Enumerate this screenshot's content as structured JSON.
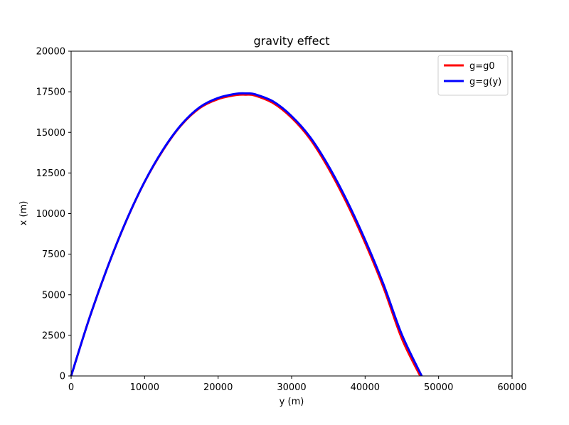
{
  "chart_data": {
    "type": "line",
    "title": "gravity effect",
    "xlabel": "y (m)",
    "ylabel": "x (m)",
    "xlim": [
      0,
      60000
    ],
    "ylim": [
      0,
      20000
    ],
    "xticks": [
      0,
      10000,
      20000,
      30000,
      40000,
      50000,
      60000
    ],
    "yticks": [
      0,
      2500,
      5000,
      7500,
      10000,
      12500,
      15000,
      17500,
      20000
    ],
    "grid": false,
    "legend_position": "upper-right",
    "series": [
      {
        "name": "g=g0",
        "color": "#ff0000",
        "x": [
          0,
          2500,
          5000,
          7500,
          10000,
          12500,
          15000,
          17500,
          20000,
          22500,
          23750,
          25000,
          27500,
          30000,
          32500,
          35000,
          37500,
          40000,
          42500,
          45000,
          47500
        ],
        "y": [
          0,
          3580,
          6750,
          9550,
          11950,
          13900,
          15450,
          16500,
          17050,
          17300,
          17320,
          17270,
          16800,
          15900,
          14600,
          12800,
          10650,
          8200,
          5450,
          2300,
          0
        ]
      },
      {
        "name": "g=g(y)",
        "color": "#0000ff",
        "x": [
          0,
          2500,
          5000,
          7500,
          10000,
          12500,
          15000,
          17500,
          20000,
          22500,
          23900,
          25000,
          27500,
          30000,
          32500,
          35000,
          37500,
          40000,
          42500,
          45000,
          47700
        ],
        "y": [
          0,
          3580,
          6750,
          9560,
          11960,
          13930,
          15480,
          16550,
          17120,
          17380,
          17400,
          17350,
          16900,
          16000,
          14720,
          12950,
          10820,
          8380,
          5650,
          2550,
          0
        ]
      }
    ]
  }
}
